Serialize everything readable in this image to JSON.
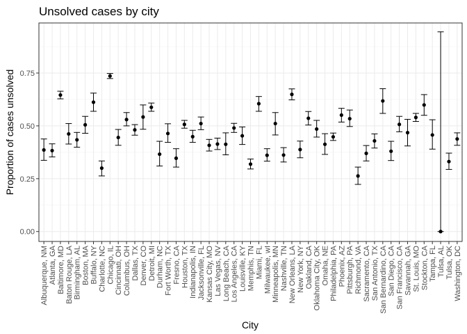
{
  "chart_data": {
    "type": "scatter",
    "title": "Unsolved cases by city",
    "xlabel": "City",
    "ylabel": "Proportion of cases unsolved",
    "ylim": [
      -0.047,
      0.987
    ],
    "yticks": [
      0.0,
      0.25,
      0.5,
      0.75
    ],
    "ytick_labels": [
      "0.00",
      "0.25",
      "0.50",
      "0.75"
    ],
    "grid": true,
    "legend": "none",
    "categories": [
      "Albuquerque, NM",
      "Atlanta, GA",
      "Baltimore, MD",
      "Baton Rouge, LA",
      "Birmingham, AL",
      "Boston, MA",
      "Buffalo, NY",
      "Charlotte, NC",
      "Chicago, IL",
      "Cincinnati, OH",
      "Columbus, OH",
      "Dallas, TX",
      "Denver, CO",
      "Detroit, MI",
      "Durham, NC",
      "Fort Worth, TX",
      "Fresno, CA",
      "Houston, TX",
      "Indianapolis, IN",
      "Jacksonville, FL",
      "Kansas City, MO",
      "Las Vegas, NV",
      "Long Beach, CA",
      "Los Angeles, CA",
      "Louisville, KY",
      "Memphis, TN",
      "Miami, FL",
      "Milwaukee, wI",
      "Minneapolis, MN",
      "Nashville, TN",
      "New Orleans, LA",
      "New York, NY",
      "Oakland, CA",
      "Oklahoma City, OK",
      "Omaha, NE",
      "Philadelphia, PA",
      "Phoenix, AZ",
      "Pittsburgh, PA",
      "Richmond, VA",
      "Sacramento, CA",
      "San Antonio, TX",
      "San Bernardino, CA",
      "San Diego, CA",
      "San Francisco, CA",
      "Savannah, GA",
      "St. Louis, MO",
      "Stockton, CA",
      "Tampa, FL",
      "Tulsa, AL",
      "Tulsa, OK",
      "Washington, DC"
    ],
    "series": [
      {
        "estimate": [
          0.386,
          0.383,
          0.646,
          0.462,
          0.434,
          0.505,
          0.612,
          0.3,
          0.736,
          0.445,
          0.53,
          0.481,
          0.542,
          0.588,
          0.366,
          0.464,
          0.347,
          0.507,
          0.449,
          0.511,
          0.408,
          0.414,
          0.413,
          0.49,
          0.453,
          0.319,
          0.605,
          0.361,
          0.511,
          0.362,
          0.649,
          0.388,
          0.536,
          0.485,
          0.413,
          0.448,
          0.551,
          0.534,
          0.263,
          0.37,
          0.429,
          0.618,
          0.38,
          0.507,
          0.468,
          0.54,
          0.599,
          0.457,
          0.0,
          0.331,
          0.438
        ],
        "lower": [
          0.337,
          0.353,
          0.628,
          0.414,
          0.399,
          0.465,
          0.569,
          0.263,
          0.724,
          0.408,
          0.5,
          0.456,
          0.484,
          0.569,
          0.31,
          0.422,
          0.305,
          0.489,
          0.422,
          0.482,
          0.381,
          0.388,
          0.363,
          0.469,
          0.412,
          0.296,
          0.569,
          0.333,
          0.457,
          0.329,
          0.623,
          0.349,
          0.504,
          0.447,
          0.365,
          0.431,
          0.518,
          0.497,
          0.223,
          0.334,
          0.395,
          0.559,
          0.336,
          0.472,
          0.405,
          0.521,
          0.55,
          0.39,
          0.0,
          0.294,
          0.408
        ],
        "upper": [
          0.438,
          0.415,
          0.664,
          0.511,
          0.469,
          0.545,
          0.655,
          0.334,
          0.748,
          0.483,
          0.563,
          0.506,
          0.599,
          0.608,
          0.427,
          0.51,
          0.392,
          0.526,
          0.479,
          0.542,
          0.436,
          0.442,
          0.467,
          0.512,
          0.495,
          0.343,
          0.639,
          0.392,
          0.563,
          0.397,
          0.675,
          0.428,
          0.568,
          0.526,
          0.463,
          0.466,
          0.583,
          0.575,
          0.305,
          0.407,
          0.462,
          0.676,
          0.427,
          0.545,
          0.531,
          0.559,
          0.648,
          0.529,
          0.945,
          0.371,
          0.467
        ]
      }
    ]
  }
}
